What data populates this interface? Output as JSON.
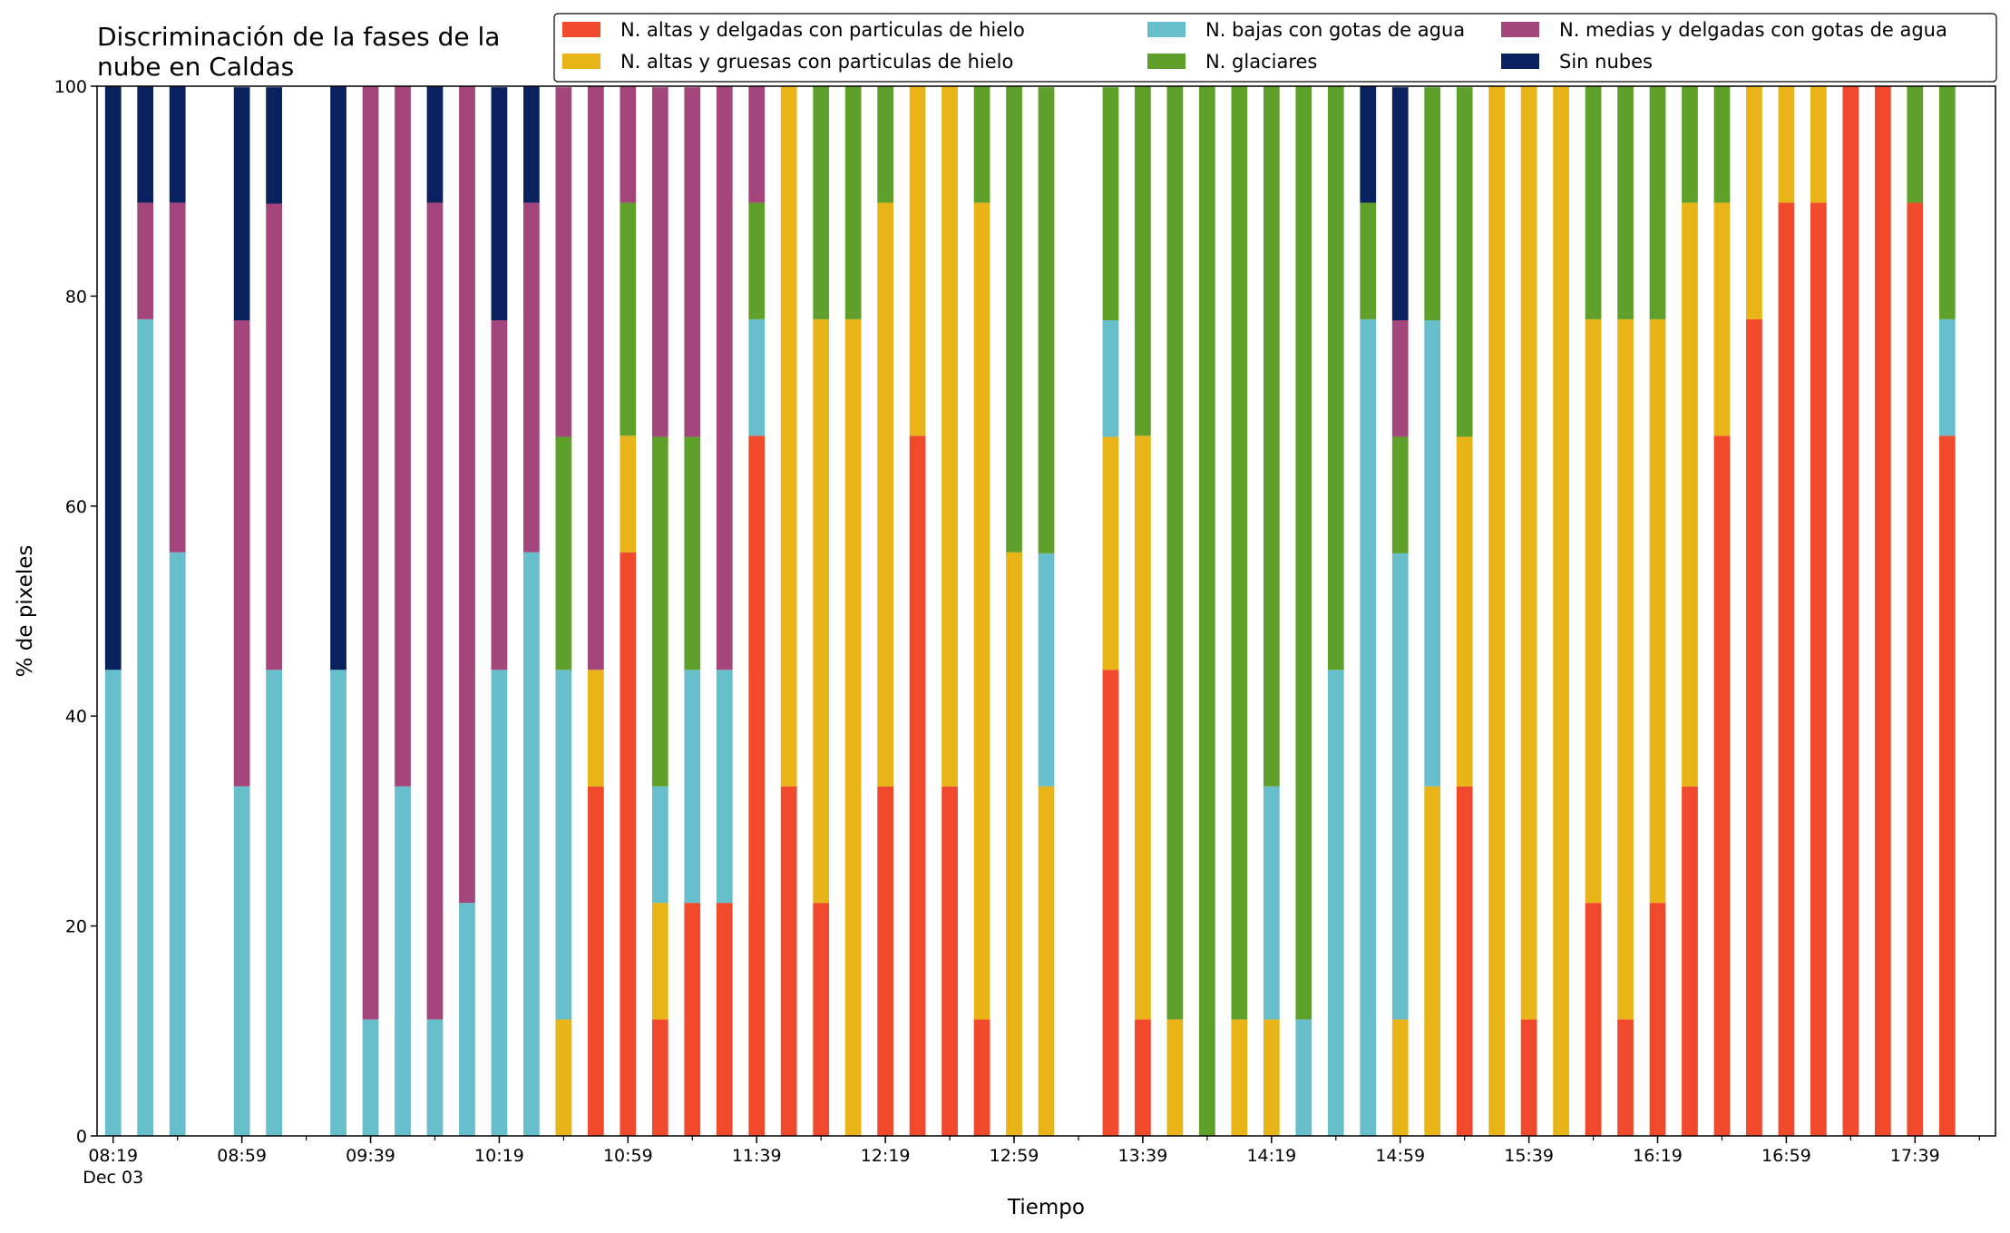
{
  "chart_data": {
    "type": "bar",
    "stacked": true,
    "title": "Discriminación de la fases de la\nnube en Caldas",
    "xlabel": "Tiempo",
    "ylabel": "% de pixeles",
    "ylim": [
      0,
      100
    ],
    "yticks": [
      "0",
      "20",
      "40",
      "60",
      "80",
      "100"
    ],
    "grid": false,
    "legend_position": "top-right",
    "x_start": "08:19",
    "x_end": "17:59",
    "x_step_minutes": 10,
    "xticks": [
      "08:19",
      "08:59",
      "09:39",
      "10:19",
      "10:59",
      "11:39",
      "12:19",
      "12:59",
      "13:39",
      "14:19",
      "14:59",
      "15:39",
      "16:19",
      "16:59",
      "17:39"
    ],
    "xtick_sublabel": "Dec 03",
    "series": [
      {
        "name": "N. altas y delgadas con particulas de hielo",
        "color": "#f0492b"
      },
      {
        "name": "N. altas y gruesas con particulas de hielo",
        "color": "#e8b418"
      },
      {
        "name": "N. bajas con gotas de agua",
        "color": "#66bfca"
      },
      {
        "name": "N. glaciares",
        "color": "#5fa02b"
      },
      {
        "name": "N. medias y delgadas con gotas de agua",
        "color": "#a4457b"
      },
      {
        "name": "Sin nubes",
        "color": "#09215f"
      }
    ],
    "bars": [
      {
        "x": "08:19",
        "values": [
          0,
          0,
          44.4,
          0,
          0,
          55.6
        ]
      },
      {
        "x": "08:29",
        "values": [
          0,
          0,
          77.8,
          0,
          11.1,
          11.1
        ]
      },
      {
        "x": "08:39",
        "values": [
          0,
          0,
          55.6,
          0,
          33.3,
          11.1
        ]
      },
      {
        "x": "08:59",
        "values": [
          0,
          0,
          33.3,
          0,
          44.4,
          22.2
        ]
      },
      {
        "x": "09:09",
        "values": [
          0,
          0,
          44.4,
          0,
          44.4,
          11.1
        ]
      },
      {
        "x": "09:29",
        "values": [
          0,
          0,
          44.4,
          0,
          0,
          55.6
        ]
      },
      {
        "x": "09:39",
        "values": [
          0,
          0,
          11.1,
          0,
          88.9,
          0
        ]
      },
      {
        "x": "09:49",
        "values": [
          0,
          0,
          33.3,
          0,
          66.7,
          0
        ]
      },
      {
        "x": "09:59",
        "values": [
          0,
          0,
          11.1,
          0,
          77.8,
          11.1
        ]
      },
      {
        "x": "10:09",
        "values": [
          0,
          0,
          22.2,
          0,
          77.8,
          0
        ]
      },
      {
        "x": "10:19",
        "values": [
          0,
          0,
          44.4,
          0,
          33.3,
          22.2
        ]
      },
      {
        "x": "10:29",
        "values": [
          0,
          0,
          55.6,
          0,
          33.3,
          11.1
        ]
      },
      {
        "x": "10:39",
        "values": [
          0,
          11.1,
          33.3,
          22.2,
          33.3,
          0
        ]
      },
      {
        "x": "10:49",
        "values": [
          33.3,
          11.1,
          0,
          0,
          55.6,
          0
        ]
      },
      {
        "x": "10:59",
        "values": [
          55.6,
          11.1,
          0,
          22.2,
          11.1,
          0
        ]
      },
      {
        "x": "11:09",
        "values": [
          11.1,
          11.1,
          11.1,
          33.3,
          33.3,
          0
        ]
      },
      {
        "x": "11:19",
        "values": [
          22.2,
          0,
          22.2,
          22.2,
          33.3,
          0
        ]
      },
      {
        "x": "11:29",
        "values": [
          22.2,
          0,
          22.2,
          0,
          55.6,
          0
        ]
      },
      {
        "x": "11:39",
        "values": [
          66.7,
          0,
          11.1,
          11.1,
          11.1,
          0
        ]
      },
      {
        "x": "11:49",
        "values": [
          33.3,
          66.7,
          0,
          0,
          0,
          0
        ]
      },
      {
        "x": "11:59",
        "values": [
          22.2,
          55.6,
          0,
          22.2,
          0,
          0
        ]
      },
      {
        "x": "12:09",
        "values": [
          0,
          77.8,
          0,
          22.2,
          0,
          0
        ]
      },
      {
        "x": "12:19",
        "values": [
          33.3,
          55.6,
          0,
          11.1,
          0,
          0
        ]
      },
      {
        "x": "12:29",
        "values": [
          66.7,
          33.3,
          0,
          0,
          0,
          0
        ]
      },
      {
        "x": "12:39",
        "values": [
          33.3,
          66.7,
          0,
          0,
          0,
          0
        ]
      },
      {
        "x": "12:49",
        "values": [
          11.1,
          77.8,
          0,
          11.1,
          0,
          0
        ]
      },
      {
        "x": "12:59",
        "values": [
          0,
          55.6,
          0,
          44.4,
          0,
          0
        ]
      },
      {
        "x": "13:09",
        "values": [
          0,
          33.3,
          22.2,
          44.4,
          0,
          0
        ]
      },
      {
        "x": "13:29",
        "values": [
          44.4,
          22.2,
          11.1,
          22.2,
          0,
          0
        ]
      },
      {
        "x": "13:39",
        "values": [
          11.1,
          55.6,
          0,
          33.3,
          0,
          0
        ]
      },
      {
        "x": "13:49",
        "values": [
          0,
          11.1,
          0,
          88.9,
          0,
          0
        ]
      },
      {
        "x": "13:59",
        "values": [
          0,
          0,
          0,
          100,
          0,
          0
        ]
      },
      {
        "x": "14:09",
        "values": [
          0,
          11.1,
          0,
          88.9,
          0,
          0
        ]
      },
      {
        "x": "14:19",
        "values": [
          0,
          11.1,
          22.2,
          66.7,
          0,
          0
        ]
      },
      {
        "x": "14:29",
        "values": [
          0,
          0,
          11.1,
          88.9,
          0,
          0
        ]
      },
      {
        "x": "14:39",
        "values": [
          0,
          0,
          44.4,
          55.6,
          0,
          0
        ]
      },
      {
        "x": "14:49",
        "values": [
          0,
          0,
          77.8,
          11.1,
          0,
          11.1
        ]
      },
      {
        "x": "14:59",
        "values": [
          0,
          11.1,
          44.4,
          11.1,
          11.1,
          22.2
        ]
      },
      {
        "x": "15:09",
        "values": [
          0,
          33.3,
          44.4,
          22.2,
          0,
          0
        ]
      },
      {
        "x": "15:19",
        "values": [
          33.3,
          33.3,
          0,
          33.3,
          0,
          0
        ]
      },
      {
        "x": "15:29",
        "values": [
          0,
          100,
          0,
          0,
          0,
          0
        ]
      },
      {
        "x": "15:39",
        "values": [
          11.1,
          88.9,
          0,
          0,
          0,
          0
        ]
      },
      {
        "x": "15:49",
        "values": [
          0,
          100,
          0,
          0,
          0,
          0
        ]
      },
      {
        "x": "15:59",
        "values": [
          22.2,
          55.6,
          0,
          22.2,
          0,
          0
        ]
      },
      {
        "x": "16:09",
        "values": [
          11.1,
          66.7,
          0,
          22.2,
          0,
          0
        ]
      },
      {
        "x": "16:19",
        "values": [
          22.2,
          55.6,
          0,
          22.2,
          0,
          0
        ]
      },
      {
        "x": "16:29",
        "values": [
          33.3,
          55.6,
          0,
          11.1,
          0,
          0
        ]
      },
      {
        "x": "16:39",
        "values": [
          66.7,
          22.2,
          0,
          11.1,
          0,
          0
        ]
      },
      {
        "x": "16:49",
        "values": [
          77.8,
          22.2,
          0,
          0,
          0,
          0
        ]
      },
      {
        "x": "16:59",
        "values": [
          88.9,
          11.1,
          0,
          0,
          0,
          0
        ]
      },
      {
        "x": "17:09",
        "values": [
          88.9,
          11.1,
          0,
          0,
          0,
          0
        ]
      },
      {
        "x": "17:19",
        "values": [
          100,
          0,
          0,
          0,
          0,
          0
        ]
      },
      {
        "x": "17:29",
        "values": [
          100,
          0,
          0,
          0,
          0,
          0
        ]
      },
      {
        "x": "17:39",
        "values": [
          88.9,
          0,
          0,
          11.1,
          0,
          0
        ]
      },
      {
        "x": "17:49",
        "values": [
          66.7,
          0,
          11.1,
          22.2,
          0,
          0
        ]
      }
    ]
  }
}
